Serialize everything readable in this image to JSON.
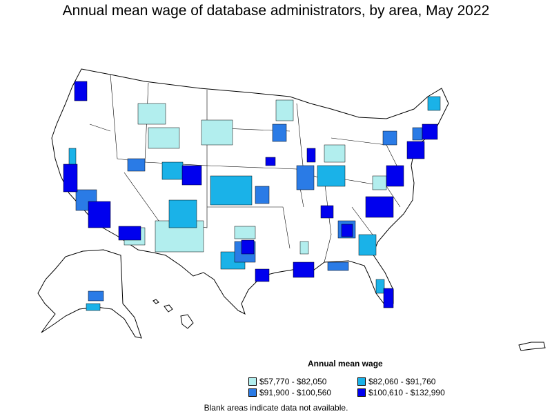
{
  "title": "Annual mean wage of database administrators, by area, May 2022",
  "legend": {
    "title": "Annual mean wage",
    "items": [
      {
        "label": "$57,770 - $82,050",
        "color": "#b2eeee"
      },
      {
        "label": "$82,060 - $91,760",
        "color": "#1ab2e8"
      },
      {
        "label": "$91,900 - $100,560",
        "color": "#2a7be6"
      },
      {
        "label": "$100,610 - $132,990",
        "color": "#0000ee"
      }
    ]
  },
  "note": "Blank areas indicate data not available."
}
